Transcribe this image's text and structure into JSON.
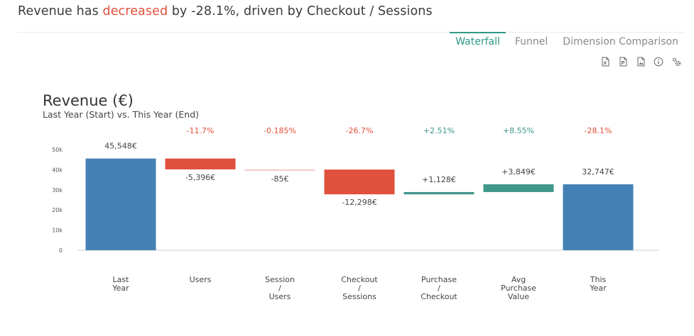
{
  "headline": {
    "prefix": "Revenue has ",
    "keyword": "decreased",
    "suffix": " by -28.1%, driven by Checkout / Sessions"
  },
  "tabs": [
    {
      "label": "Waterfall",
      "active": true
    },
    {
      "label": "Funnel",
      "active": false
    },
    {
      "label": "Dimension Comparison",
      "active": false
    }
  ],
  "toolbar": [
    "excel-export-icon",
    "pdf-export-icon",
    "image-export-icon",
    "info-icon",
    "settings-gears-icon"
  ],
  "colors": {
    "increase": "#3f978a",
    "decrease": "#e0503c",
    "total": "#4580b4",
    "axis": "#cccccc",
    "tick_text": "#555555",
    "value_text": "#444444"
  },
  "chart_data": {
    "type": "waterfall",
    "title": "Revenue (€)",
    "subtitle": "Last Year (Start) vs. This Year (End)",
    "ylim": [
      0,
      50000
    ],
    "yticks": [
      0,
      10000,
      20000,
      30000,
      40000,
      50000
    ],
    "ytick_labels": [
      "0",
      "10k",
      "20k",
      "30k",
      "40k",
      "50k"
    ],
    "categories": [
      [
        "Last",
        "Year"
      ],
      [
        "Users"
      ],
      [
        "Session",
        "/",
        "Users"
      ],
      [
        "Checkout",
        "/",
        "Sessions"
      ],
      [
        "Purchase",
        "/",
        "Checkout"
      ],
      [
        "Avg",
        "Purchase",
        "Value"
      ],
      [
        "This",
        "Year"
      ]
    ],
    "kinds": [
      "total",
      "delta",
      "delta",
      "delta",
      "delta",
      "delta",
      "total"
    ],
    "values": [
      45548,
      -5396,
      -85,
      -12298,
      1128,
      3849,
      32747
    ],
    "value_labels": [
      "45,548€",
      "-5,396€",
      "-85€",
      "-12,298€",
      "+1,128€",
      "+3,849€",
      "32,747€"
    ],
    "pct_labels": [
      "",
      "-11.7%",
      "-0.185%",
      "-26.7%",
      "+2.51%",
      "+8.55%",
      "-28.1%"
    ],
    "grid": false
  }
}
